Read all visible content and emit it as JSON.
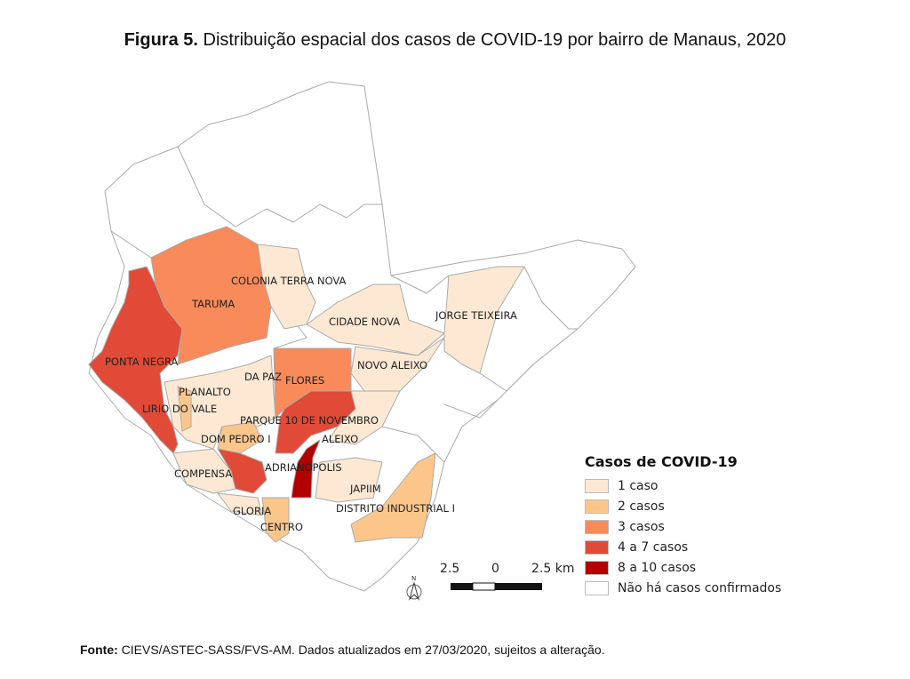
{
  "title": {
    "prefix": "Figura 5.",
    "text": " Distribuição espacial dos casos de COVID-19 por bairro de Manaus, 2020"
  },
  "legend": {
    "title": "Casos de COVID-19",
    "items": [
      {
        "label": "1 caso",
        "color": "#fde9d3"
      },
      {
        "label": "2 casos",
        "color": "#fcc68b"
      },
      {
        "label": "3 casos",
        "color": "#f98a5a"
      },
      {
        "label": "4 a 7 casos",
        "color": "#e04a36"
      },
      {
        "label": "8 a 10 casos",
        "color": "#b20000"
      },
      {
        "label": "Não há casos confirmados",
        "color": "#ffffff"
      }
    ]
  },
  "neighborhoods": [
    {
      "name": "COLONIA TERRA NOVA",
      "class": "1 caso"
    },
    {
      "name": "TARUMA",
      "class": "3 casos"
    },
    {
      "name": "CIDADE NOVA",
      "class": "1 caso"
    },
    {
      "name": "JORGE TEIXEIRA",
      "class": "1 caso"
    },
    {
      "name": "PONTA NEGRA",
      "class": "4 a 7 casos"
    },
    {
      "name": "NOVO ALEIXO",
      "class": "1 caso"
    },
    {
      "name": "DA PAZ",
      "class": "1 caso"
    },
    {
      "name": "FLORES",
      "class": "3 casos"
    },
    {
      "name": "PLANALTO",
      "class": "1 caso"
    },
    {
      "name": "LIRIO DO VALE",
      "class": "1 caso"
    },
    {
      "name": "PARQUE 10 DE NOVEMBRO",
      "class": "4 a 7 casos"
    },
    {
      "name": "DOM PEDRO I",
      "class": "2 casos"
    },
    {
      "name": "ALEIXO",
      "class": "1 caso"
    },
    {
      "name": "ADRIANOPOLIS",
      "class": "8 a 10 casos"
    },
    {
      "name": "COMPENSA",
      "class": "1 caso"
    },
    {
      "name": "JAPIIM",
      "class": "1 caso"
    },
    {
      "name": "DISTRITO INDUSTRIAL I",
      "class": "2 casos"
    },
    {
      "name": "GLORIA",
      "class": "1 caso"
    },
    {
      "name": "CENTRO",
      "class": "2 casos"
    }
  ],
  "scalebar": {
    "left": "2.5",
    "mid": "0",
    "right": "2.5 km"
  },
  "north": "N",
  "source": {
    "prefix": "Fonte:",
    "text": " CIEVS/ASTEC-SASS/FVS-AM. Dados atualizados em 27/03/2020, sujeitos a alteração."
  }
}
